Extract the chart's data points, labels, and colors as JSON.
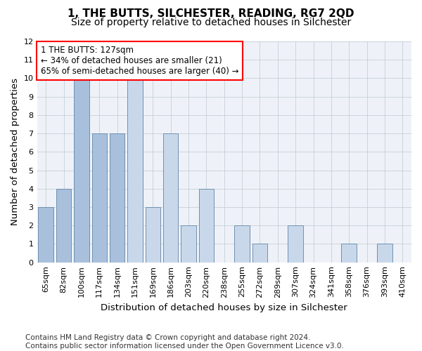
{
  "title": "1, THE BUTTS, SILCHESTER, READING, RG7 2QD",
  "subtitle": "Size of property relative to detached houses in Silchester",
  "xlabel": "Distribution of detached houses by size in Silchester",
  "ylabel": "Number of detached properties",
  "categories": [
    "65sqm",
    "82sqm",
    "100sqm",
    "117sqm",
    "134sqm",
    "151sqm",
    "169sqm",
    "186sqm",
    "203sqm",
    "220sqm",
    "238sqm",
    "255sqm",
    "272sqm",
    "289sqm",
    "307sqm",
    "324sqm",
    "341sqm",
    "358sqm",
    "376sqm",
    "393sqm",
    "410sqm"
  ],
  "values": [
    3,
    4,
    10,
    7,
    7,
    10,
    3,
    7,
    2,
    4,
    0,
    2,
    1,
    0,
    2,
    0,
    0,
    1,
    0,
    1,
    0
  ],
  "bar_color_default": "#c8d8ea",
  "bar_color_highlight": "#a8c0dc",
  "bar_edge_color": "#7090b0",
  "ylim": [
    0,
    12
  ],
  "yticks": [
    0,
    1,
    2,
    3,
    4,
    5,
    6,
    7,
    8,
    9,
    10,
    11,
    12
  ],
  "annotation_text": "1 THE BUTTS: 127sqm\n← 34% of detached houses are smaller (21)\n65% of semi-detached houses are larger (40) →",
  "highlight_indices": [
    0,
    1,
    2,
    3,
    4
  ],
  "footer_line1": "Contains HM Land Registry data © Crown copyright and database right 2024.",
  "footer_line2": "Contains public sector information licensed under the Open Government Licence v3.0.",
  "background_color": "#eef2f8",
  "grid_color": "#c0c8d0",
  "title_fontsize": 11,
  "subtitle_fontsize": 10,
  "axis_label_fontsize": 9.5,
  "tick_fontsize": 8,
  "annotation_fontsize": 8.5,
  "footer_fontsize": 7.5
}
